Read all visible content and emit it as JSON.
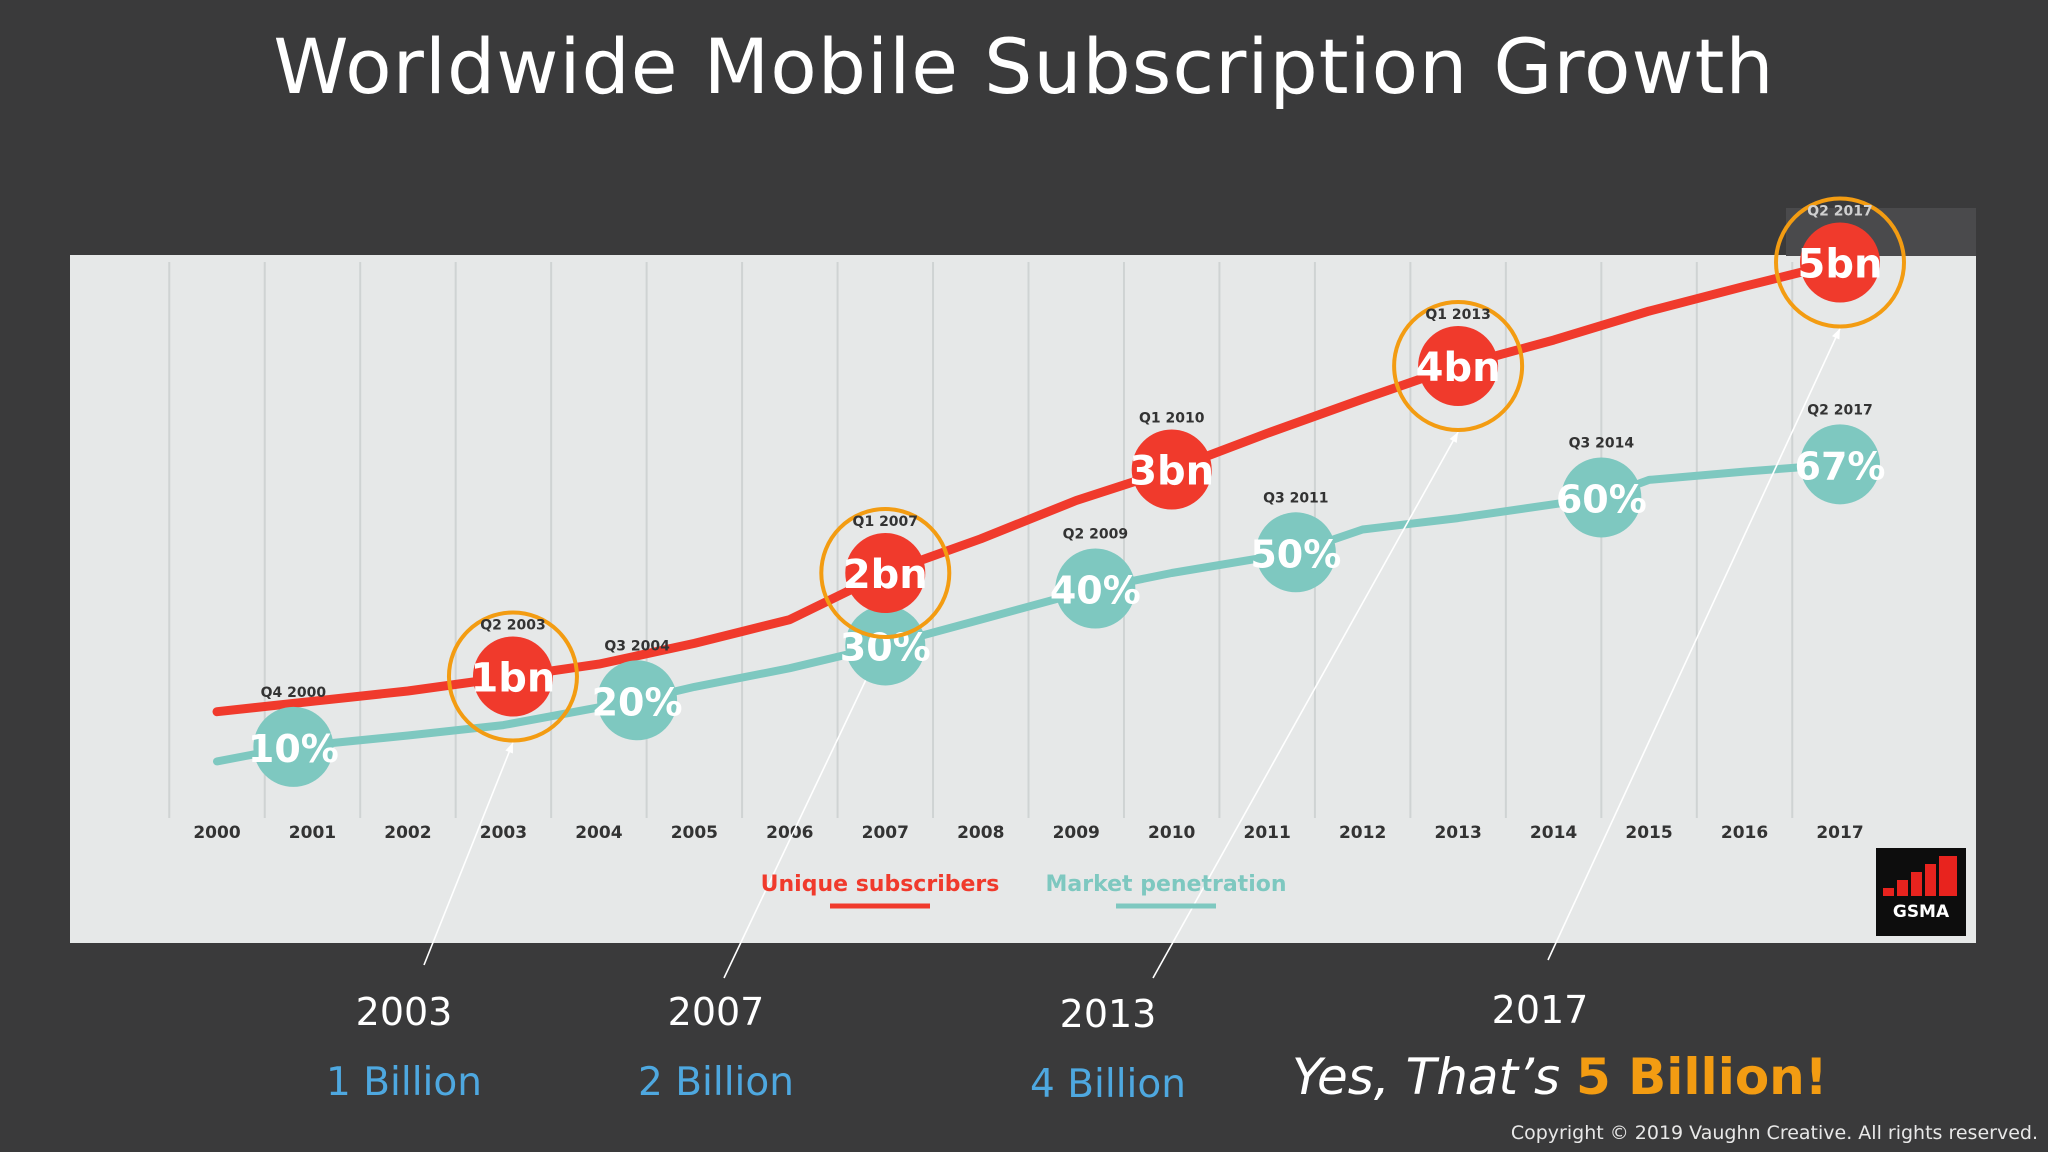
{
  "title": "Worldwide Mobile Subscription Growth",
  "chart_data": {
    "type": "line",
    "x": [
      2000,
      2001,
      2002,
      2003,
      2004,
      2005,
      2006,
      2007,
      2008,
      2009,
      2010,
      2011,
      2012,
      2013,
      2014,
      2015,
      2016,
      2017
    ],
    "xlim": [
      2000,
      2017.5
    ],
    "ylim": [
      0,
      6
    ],
    "grid": true,
    "legend_placement": "bottom-center",
    "series": [
      {
        "name": "Unique subscribers",
        "color": "#f03a2c",
        "points": [
          {
            "x": 2000.0,
            "y": 0.66
          },
          {
            "x": 2001.0,
            "y": 0.76
          },
          {
            "x": 2002.0,
            "y": 0.86
          },
          {
            "x": 2003.1,
            "y": 1.0
          },
          {
            "x": 2004.0,
            "y": 1.12
          },
          {
            "x": 2005.0,
            "y": 1.32
          },
          {
            "x": 2006.0,
            "y": 1.55
          },
          {
            "x": 2007.0,
            "y": 2.0
          },
          {
            "x": 2008.0,
            "y": 2.33
          },
          {
            "x": 2009.0,
            "y": 2.7
          },
          {
            "x": 2010.0,
            "y": 3.0
          },
          {
            "x": 2011.0,
            "y": 3.35
          },
          {
            "x": 2012.0,
            "y": 3.68
          },
          {
            "x": 2013.0,
            "y": 4.0
          },
          {
            "x": 2014.0,
            "y": 4.25
          },
          {
            "x": 2015.0,
            "y": 4.53
          },
          {
            "x": 2016.0,
            "y": 4.77
          },
          {
            "x": 2017.0,
            "y": 5.0
          }
        ]
      },
      {
        "name": "Market penetration",
        "color": "#7ec8c0",
        "points": [
          {
            "x": 2000.0,
            "y": 0.18
          },
          {
            "x": 2000.8,
            "y": 0.32
          },
          {
            "x": 2002.0,
            "y": 0.43
          },
          {
            "x": 2003.0,
            "y": 0.53
          },
          {
            "x": 2004.4,
            "y": 0.77
          },
          {
            "x": 2005.0,
            "y": 0.9
          },
          {
            "x": 2006.0,
            "y": 1.08
          },
          {
            "x": 2007.0,
            "y": 1.3
          },
          {
            "x": 2008.0,
            "y": 1.55
          },
          {
            "x": 2009.2,
            "y": 1.85
          },
          {
            "x": 2010.0,
            "y": 2.0
          },
          {
            "x": 2011.3,
            "y": 2.2
          },
          {
            "x": 2012.0,
            "y": 2.42
          },
          {
            "x": 2013.0,
            "y": 2.53
          },
          {
            "x": 2014.5,
            "y": 2.73
          },
          {
            "x": 2015.0,
            "y": 2.9
          },
          {
            "x": 2016.0,
            "y": 2.98
          },
          {
            "x": 2017.0,
            "y": 3.05
          }
        ]
      }
    ],
    "subscriber_markers": [
      {
        "label": "1bn",
        "quarter": "Q2 2003",
        "x": 2003.1,
        "y": 1.0,
        "highlighted": true
      },
      {
        "label": "2bn",
        "quarter": "Q1 2007",
        "x": 2007.0,
        "y": 2.0,
        "highlighted": true
      },
      {
        "label": "3bn",
        "quarter": "Q1 2010",
        "x": 2010.0,
        "y": 3.0,
        "highlighted": false
      },
      {
        "label": "4bn",
        "quarter": "Q1 2013",
        "x": 2013.0,
        "y": 4.0,
        "highlighted": true
      },
      {
        "label": "5bn",
        "quarter": "Q2 2017",
        "x": 2017.0,
        "y": 5.0,
        "highlighted": true
      }
    ],
    "penetration_markers": [
      {
        "label": "10%",
        "quarter": "Q4 2000",
        "x": 2000.8,
        "y": 0.32
      },
      {
        "label": "20%",
        "quarter": "Q3 2004",
        "x": 2004.4,
        "y": 0.77
      },
      {
        "label": "30%",
        "quarter": "Q1 2007",
        "x": 2007.0,
        "y": 1.3
      },
      {
        "label": "40%",
        "quarter": "Q2 2009",
        "x": 2009.2,
        "y": 1.85
      },
      {
        "label": "50%",
        "quarter": "Q3 2011",
        "x": 2011.3,
        "y": 2.2
      },
      {
        "label": "60%",
        "quarter": "Q3 2014",
        "x": 2014.5,
        "y": 2.73
      },
      {
        "label": "67%",
        "quarter": "Q2 2017",
        "x": 2017.0,
        "y": 3.05
      }
    ],
    "legend": [
      "Unique subscribers",
      "Market penetration"
    ]
  },
  "logo": {
    "text": "GSMA",
    "brand_color": "#e8231e"
  },
  "milestones": [
    {
      "year": "2003",
      "value": "1 Billion"
    },
    {
      "year": "2007",
      "value": "2 Billion"
    },
    {
      "year": "2013",
      "value": "4 Billion"
    },
    {
      "year": "2017",
      "value": ""
    }
  ],
  "tagline": {
    "prefix": "Yes, That’s ",
    "highlight": "5 Billion!"
  },
  "copyright": "Copyright © 2019 Vaughn Creative. All rights reserved.",
  "colors": {
    "background": "#3a3a3b",
    "panel": "#e6e8e8",
    "highlight_ring": "#f39c12",
    "milestone_value": "#4ea8e0"
  }
}
